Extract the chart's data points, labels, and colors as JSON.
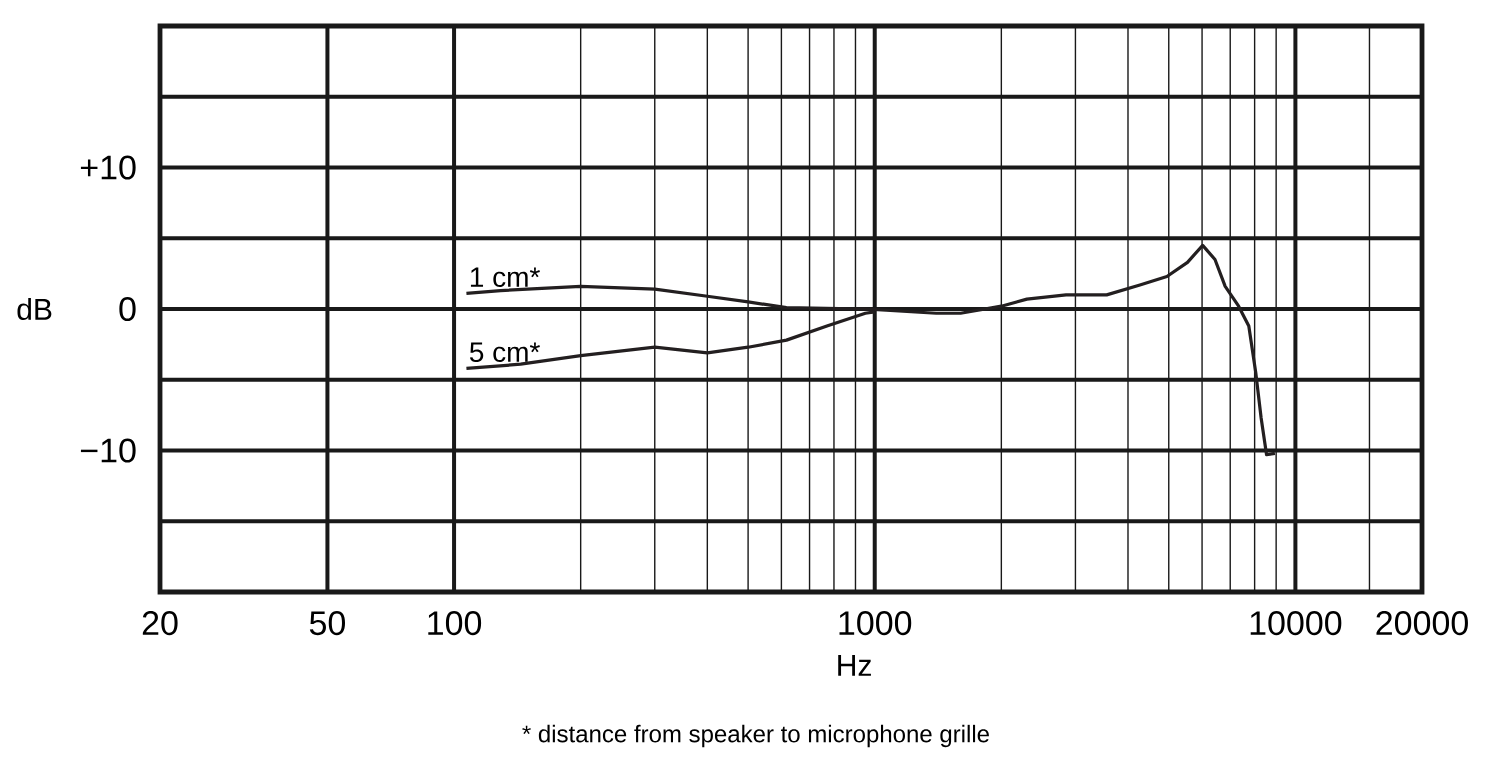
{
  "chart_data": {
    "type": "line",
    "xlabel": "Hz",
    "ylabel": "dB",
    "log": "x",
    "grid": true,
    "xlim": [
      20,
      20000
    ],
    "ylim": [
      -20,
      20
    ],
    "xticks": [
      20,
      50,
      100,
      {
        "value": 200,
        "label": null
      },
      {
        "value": 300,
        "label": null
      },
      {
        "value": 400,
        "label": null
      },
      {
        "value": 500,
        "label": null
      },
      {
        "value": 600,
        "label": null
      },
      {
        "value": 700,
        "label": null
      },
      {
        "value": 800,
        "label": null
      },
      {
        "value": 900,
        "label": null
      },
      1000,
      {
        "value": 2000,
        "label": null
      },
      {
        "value": 3000,
        "label": null
      },
      {
        "value": 4000,
        "label": null
      },
      {
        "value": 5000,
        "label": null
      },
      {
        "value": 6000,
        "label": null
      },
      {
        "value": 7000,
        "label": null
      },
      {
        "value": 8000,
        "label": null
      },
      {
        "value": 9000,
        "label": null
      },
      10000,
      {
        "value": 15000,
        "label": null
      },
      20000
    ],
    "yticks": [
      {
        "value": -20,
        "label": null
      },
      {
        "value": -15,
        "label": null
      },
      {
        "value": -10,
        "label": "−10"
      },
      {
        "value": -5,
        "label": null
      },
      0,
      {
        "value": 5,
        "label": null
      },
      {
        "value": 10,
        "label": "+10"
      },
      {
        "value": 15,
        "label": null
      },
      {
        "value": 20,
        "label": null
      }
    ],
    "series": [
      {
        "name": "1 cm*",
        "color": "#231f20",
        "x": [
          107,
          129,
          200,
          300,
          400,
          500,
          617,
          950,
          1400,
          1600,
          2000,
          2300,
          2850,
          3560,
          4270,
          4950,
          5540,
          6020,
          6440,
          6810,
          7330,
          7750,
          8050,
          8290,
          8540,
          8940
        ],
        "values": [
          1.1,
          1.3,
          1.6,
          1.4,
          0.9,
          0.5,
          0.1,
          0,
          -0.3,
          -0.3,
          0.2,
          0.7,
          1.0,
          1.0,
          1.7,
          2.3,
          3.3,
          4.5,
          3.5,
          1.6,
          0.2,
          -1.2,
          -4.5,
          -7.7,
          -10.3,
          -10.2
        ]
      },
      {
        "name": "5 cm*",
        "color": "#231f20",
        "x": [
          107,
          144,
          200,
          300,
          400,
          500,
          617,
          770,
          950,
          1000
        ],
        "values": [
          -4.2,
          -3.9,
          -3.3,
          -2.7,
          -3.1,
          -2.7,
          -2.2,
          -1.2,
          -0.3,
          -0.2
        ]
      }
    ],
    "annotations": [
      "* distance from speaker to microphone grille"
    ]
  }
}
